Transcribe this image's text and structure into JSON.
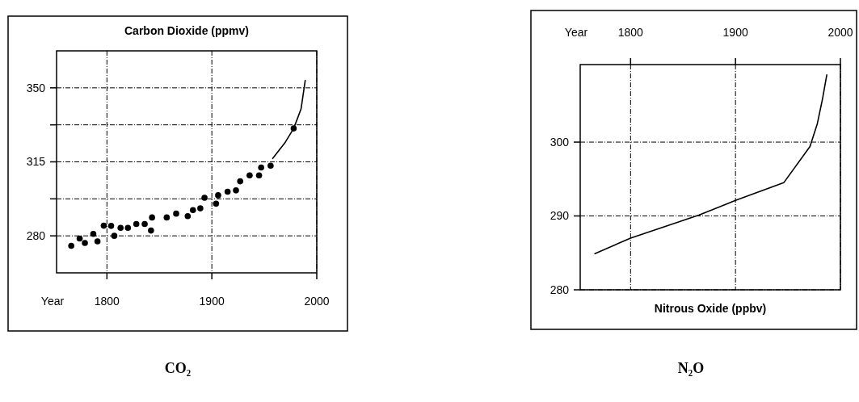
{
  "chart_data": [
    {
      "type": "scatter",
      "title": "Carbon Dioxide (ppmv)",
      "xlabel": "Year",
      "xlim": [
        1752,
        2000
      ],
      "xticks": [
        1800,
        1900,
        2000
      ],
      "ylim": [
        262.5,
        367.5
      ],
      "yticks": [
        280,
        {
          "value": 297.5,
          "label": null
        },
        315,
        {
          "value": 332.5,
          "label": null
        },
        350
      ],
      "grid": true,
      "marker": "circle",
      "annotations": [
        "CO₂"
      ],
      "series": [
        {
          "color": "#000000",
          "x": [
            1766,
            1774,
            1779,
            1787,
            1791,
            1797,
            1804,
            1807,
            1813,
            1820,
            1828,
            1836,
            1842,
            1843,
            1857,
            1866,
            1877,
            1882,
            1889,
            1893,
            1904,
            1906,
            1915,
            1923,
            1927,
            1936,
            1945,
            1947,
            1956,
            1978
          ],
          "values": [
            275.3,
            278.7,
            276.6,
            280.9,
            277.4,
            284.8,
            284.7,
            280,
            283.8,
            283.8,
            285.6,
            285.6,
            282.5,
            288.7,
            288.7,
            290.5,
            289.3,
            292.2,
            293,
            298,
            295.2,
            299.2,
            300.9,
            301.5,
            305.8,
            308.6,
            308.6,
            312.3,
            313.2,
            330.8
          ]
        },
        {
          "type": "line",
          "marker": "none",
          "line_style": "solid",
          "color": "#000000",
          "x": [
            1958,
            1970,
            1978,
            1985,
            1989
          ],
          "values": [
            316.6,
            324.3,
            330.8,
            340,
            353.5
          ]
        }
      ]
    },
    {
      "type": "line",
      "title": "Nitrous Oxide (ppbv)",
      "xlabel": "Year",
      "xlim": [
        1752,
        2000
      ],
      "xticks": [
        1800,
        1900,
        2000
      ],
      "ylim": [
        280,
        310.5
      ],
      "yticks": [
        280,
        290,
        300
      ],
      "grid": true,
      "line_style": "solid",
      "annotations": [
        "N₂O"
      ],
      "series": [
        {
          "color": "#000000",
          "x": [
            1766,
            1800,
            1865,
            1900,
            1946,
            1971,
            1978,
            1983,
            1987
          ],
          "values": [
            284.9,
            287,
            290.1,
            292.1,
            294.5,
            299.4,
            302.5,
            305.9,
            309.1
          ]
        }
      ]
    }
  ]
}
